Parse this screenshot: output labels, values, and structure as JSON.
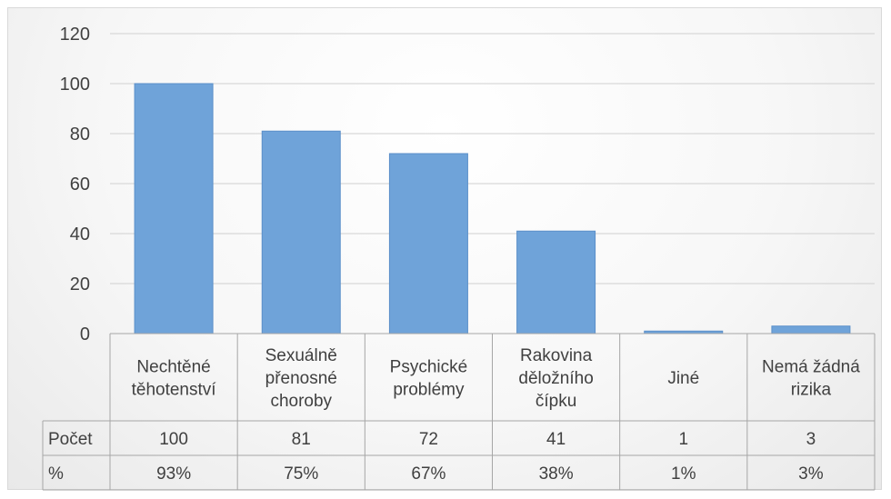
{
  "chart_data": {
    "type": "bar",
    "categories": [
      [
        "Nechtěné",
        "těhotenství"
      ],
      [
        "Sexuálně",
        "přenosné",
        "choroby"
      ],
      [
        "Psychické",
        "problémy"
      ],
      [
        "Rakovina",
        "děložního",
        "čípku"
      ],
      [
        "Jiné"
      ],
      [
        "Nemá žádná",
        "rizika"
      ]
    ],
    "values": [
      100,
      81,
      72,
      41,
      1,
      3
    ],
    "y_ticks": [
      "0",
      "20",
      "40",
      "60",
      "80",
      "100",
      "120"
    ],
    "ylim": [
      0,
      120
    ],
    "grid": true,
    "bar_color": "#6fa3d9",
    "bar_border": "#5b8fc9",
    "table": {
      "rows": [
        {
          "label": "Počet",
          "cells": [
            "100",
            "81",
            "72",
            "41",
            "1",
            "3"
          ]
        },
        {
          "label": "%",
          "cells": [
            "93%",
            "75%",
            "67%",
            "38%",
            "1%",
            "3%"
          ]
        }
      ]
    }
  }
}
